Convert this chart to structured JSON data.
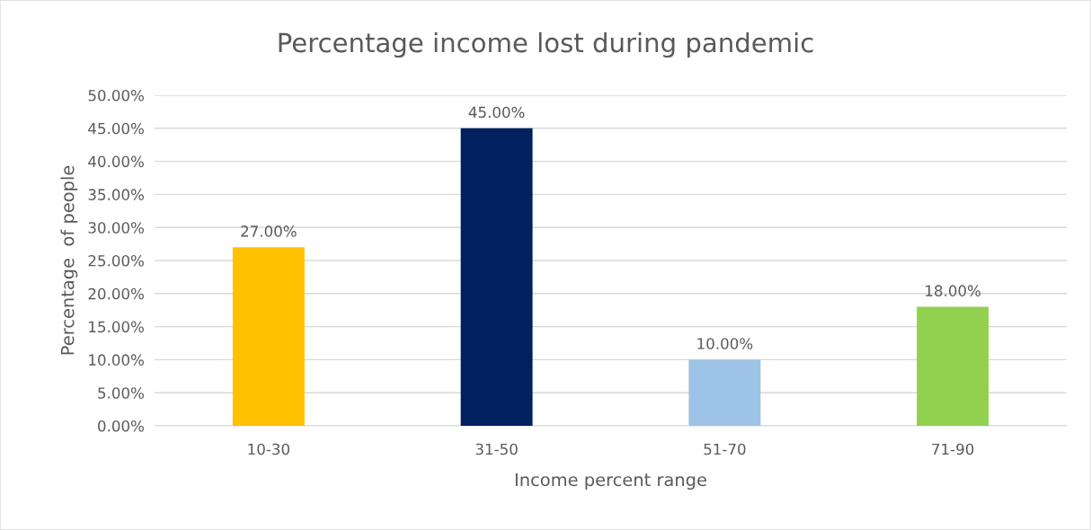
{
  "chart_data": {
    "type": "bar",
    "title": "Percentage income lost during pandemic",
    "xlabel": "Income percent range",
    "ylabel": "Percentage  of people",
    "categories": [
      "10-30",
      "31-50",
      "51-70",
      "71-90"
    ],
    "values": [
      27,
      45,
      10,
      18
    ],
    "colors": [
      "#ffc000",
      "#002060",
      "#9dc3e6",
      "#92d050"
    ],
    "value_labels": [
      "27.00%",
      "45.00%",
      "10.00%",
      "18.00%"
    ],
    "ylim": [
      0,
      50
    ],
    "yticks": [
      {
        "value": 0,
        "label": "0.00%"
      },
      {
        "value": 5,
        "label": "5.00%"
      },
      {
        "value": 10,
        "label": "10.00%"
      },
      {
        "value": 15,
        "label": "15.00%"
      },
      {
        "value": 20,
        "label": "20.00%"
      },
      {
        "value": 25,
        "label": "25.00%"
      },
      {
        "value": 30,
        "label": "30.00%"
      },
      {
        "value": 35,
        "label": "35.00%"
      },
      {
        "value": 40,
        "label": "40.00%"
      },
      {
        "value": 45,
        "label": "45.00%"
      },
      {
        "value": 50,
        "label": "50.00%"
      }
    ],
    "grid": "y",
    "legend": false
  }
}
